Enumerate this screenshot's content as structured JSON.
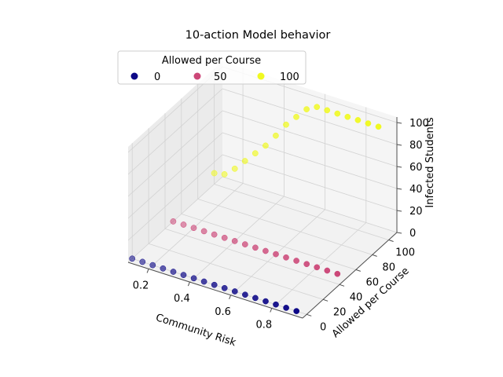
{
  "chart_data": {
    "type": "scatter",
    "projection": "3d",
    "title": "10-action Model behavior",
    "xlabel": "Community Risk",
    "ylabel": "Allowed per Course",
    "zlabel": "Infected Students",
    "xlim": [
      0.1,
      0.95
    ],
    "ylim": [
      -5,
      110
    ],
    "zlim": [
      0,
      105
    ],
    "xticks": [
      "0.2",
      "0.4",
      "0.6",
      "0.8"
    ],
    "yticks": [
      "0",
      "20",
      "40",
      "60",
      "80",
      "100"
    ],
    "zticks": [
      "0",
      "20",
      "40",
      "60",
      "80",
      "100"
    ],
    "grid": true,
    "legend": {
      "title": "Allowed per Course",
      "placement": "top-left",
      "entries": [
        {
          "label": "0",
          "color": "#0d0887"
        },
        {
          "label": "50",
          "color": "#cc4778"
        },
        {
          "label": "100",
          "color": "#f0f921"
        }
      ]
    },
    "series": [
      {
        "color": "#0d0887",
        "y": 0,
        "x": [
          0.1,
          0.15,
          0.2,
          0.25,
          0.3,
          0.35,
          0.4,
          0.45,
          0.5,
          0.55,
          0.6,
          0.65,
          0.7,
          0.75,
          0.8,
          0.85,
          0.9
        ],
        "z": [
          0,
          0,
          0,
          0,
          0,
          0,
          0,
          0,
          0,
          0,
          0,
          0,
          0,
          0,
          0,
          0,
          0
        ]
      },
      {
        "color": "#cc4778",
        "y": 50,
        "x": [
          0.1,
          0.15,
          0.2,
          0.25,
          0.3,
          0.35,
          0.4,
          0.45,
          0.5,
          0.55,
          0.6,
          0.65,
          0.7,
          0.75,
          0.8,
          0.85,
          0.9
        ],
        "z": [
          0,
          0,
          0,
          0,
          0,
          0,
          0,
          0,
          0,
          0,
          0,
          0,
          0,
          0,
          0,
          0,
          0
        ]
      },
      {
        "color": "#f0f921",
        "y": 100,
        "x": [
          0.1,
          0.15,
          0.2,
          0.25,
          0.3,
          0.35,
          0.4,
          0.45,
          0.5,
          0.55,
          0.6,
          0.65,
          0.7,
          0.75,
          0.8,
          0.85,
          0.9
        ],
        "z": [
          10,
          12,
          20,
          30,
          40,
          50,
          62,
          75,
          85,
          95,
          100,
          100,
          100,
          100,
          100,
          100,
          100
        ]
      }
    ]
  }
}
